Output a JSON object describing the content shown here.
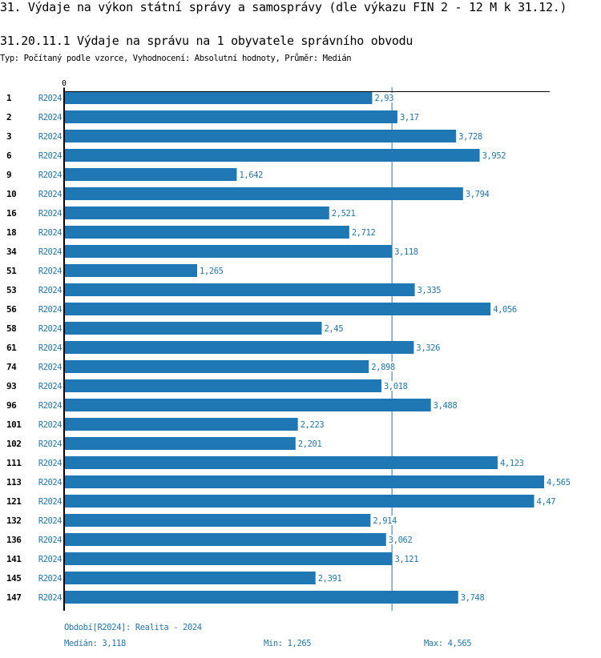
{
  "header": {
    "title": "31. Výdaje na výkon státní správy a samosprávy (dle výkazu FIN 2 - 12 M k 31.12.)",
    "indicator_title": "31.20.11.1 Výdaje na správu na 1 obyvatele správního obvodu",
    "description": "Typ: Počítaný podle vzorce, Vyhodnocení: Absolutní hodnoty, Průměr: Medián"
  },
  "colors": {
    "bar": "#1f77b4",
    "label": "#1f77b4",
    "axis": "#000000",
    "median_line": "#1f77b4"
  },
  "chart_data": {
    "type": "bar",
    "orientation": "horizontal",
    "title": "31.20.11.1 Výdaje na správu na 1 obyvatele správního obvodu",
    "xlabel": "",
    "ylabel": "",
    "x_tick_labels": [
      "0"
    ],
    "xlim": [
      0,
      4.565
    ],
    "grid": false,
    "median": 3.118,
    "categories": [
      "1",
      "2",
      "3",
      "6",
      "9",
      "10",
      "16",
      "18",
      "34",
      "51",
      "53",
      "56",
      "58",
      "61",
      "74",
      "93",
      "96",
      "101",
      "102",
      "111",
      "113",
      "121",
      "132",
      "136",
      "141",
      "145",
      "147"
    ],
    "period_label": "R2024",
    "series": [
      {
        "name": "R2024",
        "values": [
          2.93,
          3.17,
          3.728,
          3.952,
          1.642,
          3.794,
          2.521,
          2.712,
          3.118,
          1.265,
          3.335,
          4.056,
          2.45,
          3.326,
          2.898,
          3.018,
          3.488,
          2.223,
          2.201,
          4.123,
          4.565,
          4.47,
          2.914,
          3.062,
          3.121,
          2.391,
          3.748
        ],
        "value_labels": [
          "2,93",
          "3,17",
          "3,728",
          "3,952",
          "1,642",
          "3,794",
          "2,521",
          "2,712",
          "3,118",
          "1,265",
          "3,335",
          "4,056",
          "2,45",
          "3,326",
          "2,898",
          "3,018",
          "3,488",
          "2,223",
          "2,201",
          "4,123",
          "4,565",
          "4,47",
          "2,914",
          "3,062",
          "3,121",
          "2,391",
          "3,748"
        ]
      }
    ]
  },
  "footer": {
    "period": "Období[R2024]: Realita - 2024",
    "median": "Medián: 3,118",
    "min": "Min: 1,265",
    "max": "Max: 4,565"
  }
}
